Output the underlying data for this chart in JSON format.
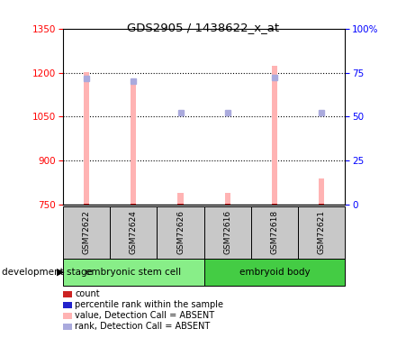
{
  "title": "GDS2905 / 1438622_x_at",
  "samples": [
    "GSM72622",
    "GSM72624",
    "GSM72626",
    "GSM72616",
    "GSM72618",
    "GSM72621"
  ],
  "ylim_left": [
    750,
    1350
  ],
  "ylim_right": [
    0,
    100
  ],
  "yticks_left": [
    750,
    900,
    1050,
    1200,
    1350
  ],
  "yticks_right": [
    0,
    25,
    50,
    75,
    100
  ],
  "bar_values": [
    1202,
    1178,
    790,
    790,
    1222,
    840
  ],
  "rank_dot_values": [
    1180,
    1170,
    1063,
    1063,
    1183,
    1063
  ],
  "bar_color": "#FFB3B3",
  "rank_dot_color": "#AAAADD",
  "small_bar_color": "#CC2222",
  "rank_small_color": "#2222CC",
  "bar_width": 0.12,
  "group1_color": "#88EE88",
  "group2_color": "#44CC44",
  "gray_color": "#C8C8C8",
  "legend_items": [
    {
      "label": "count",
      "color": "#CC2222"
    },
    {
      "label": "percentile rank within the sample",
      "color": "#2222CC"
    },
    {
      "label": "value, Detection Call = ABSENT",
      "color": "#FFB3B3"
    },
    {
      "label": "rank, Detection Call = ABSENT",
      "color": "#AAAADD"
    }
  ]
}
